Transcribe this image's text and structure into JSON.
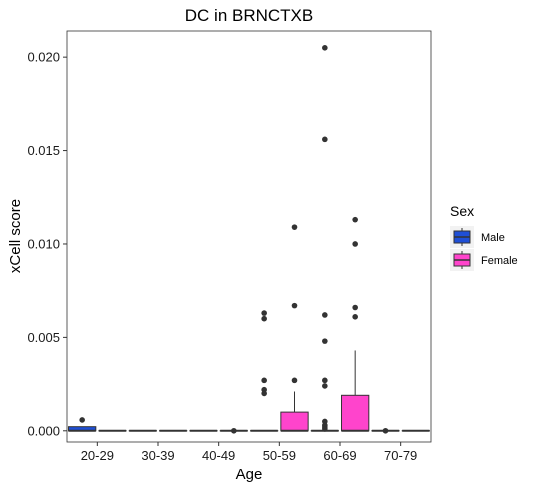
{
  "chart_data": {
    "type": "boxplot",
    "title": "DC in BRNCTXB",
    "xlabel": "Age",
    "ylabel": "xCell score",
    "categories": [
      "20-29",
      "30-39",
      "40-49",
      "50-59",
      "60-69",
      "70-79"
    ],
    "ylim": [
      -0.0006,
      0.0214
    ],
    "yticks": [
      0.0,
      0.005,
      0.01,
      0.015,
      0.02
    ],
    "ytick_labels": [
      "0.000",
      "0.005",
      "0.010",
      "0.015",
      "0.020"
    ],
    "grid": false,
    "legend": {
      "title": "Sex",
      "position": "right",
      "entries": [
        {
          "label": "Male",
          "color": "#1f4fd6"
        },
        {
          "label": "Female",
          "color": "#ff44cc"
        }
      ]
    },
    "series": [
      {
        "name": "Male",
        "color": "#1f4fd6",
        "boxes": [
          {
            "category": "20-29",
            "q1": 0.0,
            "median": 0.0,
            "q3": 0.00022,
            "whisker_low": 0.0,
            "whisker_high": 0.00022,
            "outliers": [
              0.00058
            ]
          },
          {
            "category": "30-39",
            "q1": 0.0,
            "median": 0.0,
            "q3": 0.0,
            "whisker_low": 0.0,
            "whisker_high": 0.0,
            "outliers": []
          },
          {
            "category": "40-49",
            "q1": 0.0,
            "median": 0.0,
            "q3": 0.0,
            "whisker_low": 0.0,
            "whisker_high": 0.0,
            "outliers": []
          },
          {
            "category": "50-59",
            "q1": 0.0,
            "median": 0.0,
            "q3": 0.0,
            "whisker_low": 0.0,
            "whisker_high": 0.0,
            "outliers": [
              0.0063,
              0.006,
              0.0027,
              0.0022,
              0.002
            ]
          },
          {
            "category": "60-69",
            "q1": 0.0,
            "median": 0.0,
            "q3": 0.0,
            "whisker_low": 0.0,
            "whisker_high": 0.0,
            "outliers": [
              0.0205,
              0.0156,
              0.0062,
              0.0048,
              0.0027,
              0.0024,
              0.0005,
              0.0003,
              0.0002,
              0.0001
            ]
          },
          {
            "category": "70-79",
            "q1": 0.0,
            "median": 0.0,
            "q3": 0.0,
            "whisker_low": 0.0,
            "whisker_high": 0.0,
            "outliers": [
              0.0
            ]
          }
        ]
      },
      {
        "name": "Female",
        "color": "#ff44cc",
        "boxes": [
          {
            "category": "20-29",
            "q1": 0.0,
            "median": 0.0,
            "q3": 0.0,
            "whisker_low": 0.0,
            "whisker_high": 0.0,
            "outliers": []
          },
          {
            "category": "30-39",
            "q1": 0.0,
            "median": 0.0,
            "q3": 0.0,
            "whisker_low": 0.0,
            "whisker_high": 0.0,
            "outliers": []
          },
          {
            "category": "40-49",
            "q1": 0.0,
            "median": 0.0,
            "q3": 0.0,
            "whisker_low": 0.0,
            "whisker_high": 0.0,
            "outliers": [
              0.0
            ]
          },
          {
            "category": "50-59",
            "q1": 0.0,
            "median": 0.0,
            "q3": 0.001,
            "whisker_low": 0.0,
            "whisker_high": 0.0021,
            "outliers": [
              0.0109,
              0.0067,
              0.0027
            ]
          },
          {
            "category": "60-69",
            "q1": 0.0,
            "median": 0.0,
            "q3": 0.0019,
            "whisker_low": 0.0,
            "whisker_high": 0.0043,
            "outliers": [
              0.0113,
              0.01,
              0.0066,
              0.0061
            ]
          },
          {
            "category": "70-79",
            "q1": 0.0,
            "median": 0.0,
            "q3": 0.0,
            "whisker_low": 0.0,
            "whisker_high": 0.0,
            "outliers": []
          }
        ]
      }
    ]
  }
}
